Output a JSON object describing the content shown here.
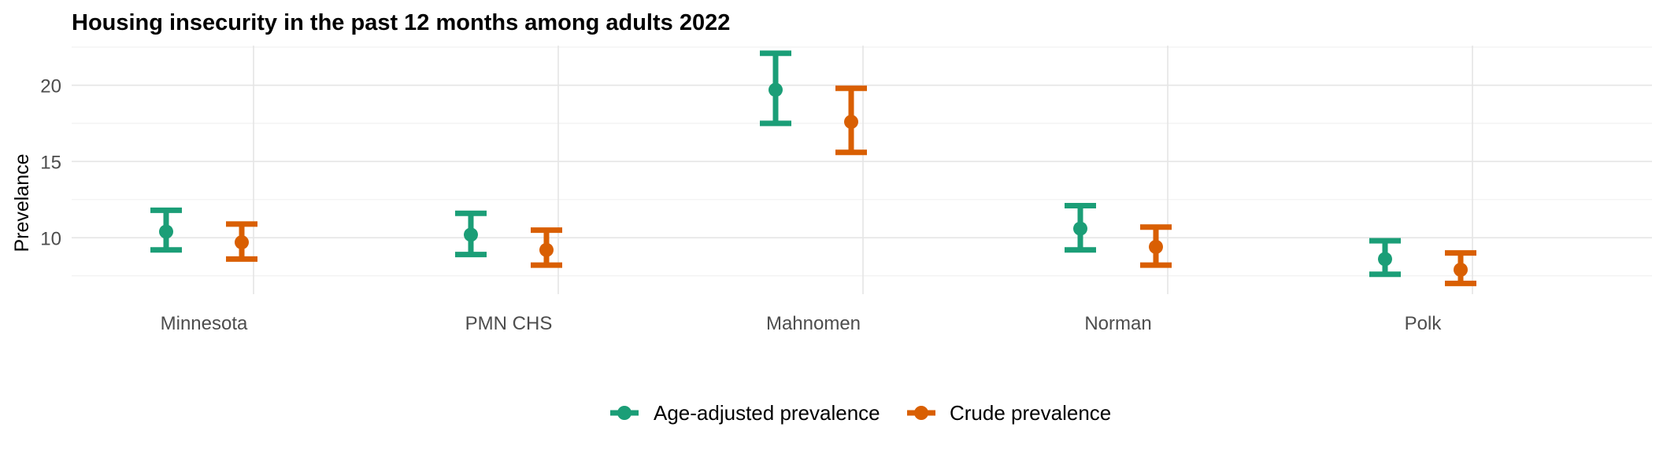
{
  "chart_data": {
    "type": "errorbar",
    "title": "Housing insecurity in the past 12 months among adults 2022",
    "xlabel": "",
    "ylabel": "Prevelance",
    "categories": [
      "Minnesota",
      "PMN CHS",
      "Mahnomen",
      "Norman",
      "Polk"
    ],
    "y_ticks": [
      10,
      15,
      20
    ],
    "ylim": [
      6.3,
      22.6
    ],
    "grid": true,
    "legend_position": "bottom",
    "series": [
      {
        "name": "Age-adjusted prevalence",
        "color": "#1b9e77",
        "values": [
          10.4,
          10.2,
          19.7,
          10.6,
          8.6
        ],
        "lower": [
          9.2,
          8.9,
          17.5,
          9.2,
          7.6
        ],
        "upper": [
          11.8,
          11.6,
          22.1,
          12.1,
          9.8
        ]
      },
      {
        "name": "Crude prevalence",
        "color": "#d95f02",
        "values": [
          9.7,
          9.2,
          17.6,
          9.4,
          7.9
        ],
        "lower": [
          8.6,
          8.2,
          15.6,
          8.2,
          7.0
        ],
        "upper": [
          10.9,
          10.5,
          19.8,
          10.7,
          9.0
        ]
      }
    ]
  }
}
